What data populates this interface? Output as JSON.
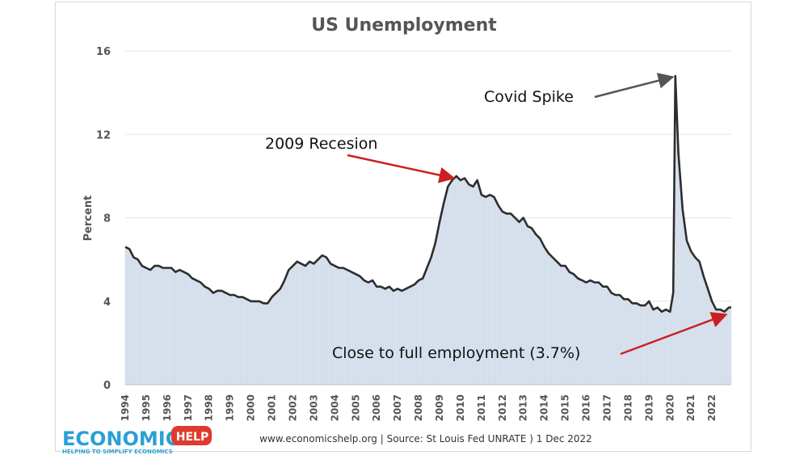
{
  "chart_data": {
    "type": "area",
    "title": "US Unemployment",
    "ylabel": "Percent",
    "xlabel": "",
    "ylim": [
      0,
      16
    ],
    "yticks": [
      0,
      4,
      8,
      12,
      16
    ],
    "xlim": [
      1994.0,
      2022.92
    ],
    "xticks": [
      "1994",
      "1995",
      "1996",
      "1997",
      "1998",
      "1999",
      "2000",
      "2001",
      "2002",
      "2003",
      "2004",
      "2005",
      "2006",
      "2007",
      "2008",
      "2009",
      "2010",
      "2011",
      "2012",
      "2013",
      "2014",
      "2015",
      "2016",
      "2017",
      "2018",
      "2019",
      "2020",
      "2021",
      "2022"
    ],
    "grid": "horizontal",
    "series": [
      {
        "values": [
          [
            1994.0,
            6.6
          ],
          [
            1994.2,
            6.5
          ],
          [
            1994.4,
            6.1
          ],
          [
            1994.6,
            6.0
          ],
          [
            1994.8,
            5.7
          ],
          [
            1995.0,
            5.6
          ],
          [
            1995.2,
            5.5
          ],
          [
            1995.4,
            5.7
          ],
          [
            1995.6,
            5.7
          ],
          [
            1995.8,
            5.6
          ],
          [
            1996.0,
            5.6
          ],
          [
            1996.2,
            5.6
          ],
          [
            1996.4,
            5.4
          ],
          [
            1996.6,
            5.5
          ],
          [
            1996.8,
            5.4
          ],
          [
            1997.0,
            5.3
          ],
          [
            1997.2,
            5.1
          ],
          [
            1997.4,
            5.0
          ],
          [
            1997.6,
            4.9
          ],
          [
            1997.8,
            4.7
          ],
          [
            1998.0,
            4.6
          ],
          [
            1998.2,
            4.4
          ],
          [
            1998.4,
            4.5
          ],
          [
            1998.6,
            4.5
          ],
          [
            1998.8,
            4.4
          ],
          [
            1999.0,
            4.3
          ],
          [
            1999.2,
            4.3
          ],
          [
            1999.4,
            4.2
          ],
          [
            1999.6,
            4.2
          ],
          [
            1999.8,
            4.1
          ],
          [
            2000.0,
            4.0
          ],
          [
            2000.2,
            4.0
          ],
          [
            2000.4,
            4.0
          ],
          [
            2000.6,
            3.9
          ],
          [
            2000.8,
            3.9
          ],
          [
            2001.0,
            4.2
          ],
          [
            2001.2,
            4.4
          ],
          [
            2001.4,
            4.6
          ],
          [
            2001.6,
            5.0
          ],
          [
            2001.8,
            5.5
          ],
          [
            2002.0,
            5.7
          ],
          [
            2002.2,
            5.9
          ],
          [
            2002.4,
            5.8
          ],
          [
            2002.6,
            5.7
          ],
          [
            2002.8,
            5.9
          ],
          [
            2003.0,
            5.8
          ],
          [
            2003.2,
            6.0
          ],
          [
            2003.4,
            6.2
          ],
          [
            2003.6,
            6.1
          ],
          [
            2003.8,
            5.8
          ],
          [
            2004.0,
            5.7
          ],
          [
            2004.2,
            5.6
          ],
          [
            2004.4,
            5.6
          ],
          [
            2004.6,
            5.5
          ],
          [
            2004.8,
            5.4
          ],
          [
            2005.0,
            5.3
          ],
          [
            2005.2,
            5.2
          ],
          [
            2005.4,
            5.0
          ],
          [
            2005.6,
            4.9
          ],
          [
            2005.8,
            5.0
          ],
          [
            2006.0,
            4.7
          ],
          [
            2006.2,
            4.7
          ],
          [
            2006.4,
            4.6
          ],
          [
            2006.6,
            4.7
          ],
          [
            2006.8,
            4.5
          ],
          [
            2007.0,
            4.6
          ],
          [
            2007.2,
            4.5
          ],
          [
            2007.4,
            4.6
          ],
          [
            2007.6,
            4.7
          ],
          [
            2007.8,
            4.8
          ],
          [
            2008.0,
            5.0
          ],
          [
            2008.2,
            5.1
          ],
          [
            2008.4,
            5.6
          ],
          [
            2008.6,
            6.1
          ],
          [
            2008.8,
            6.8
          ],
          [
            2009.0,
            7.8
          ],
          [
            2009.2,
            8.7
          ],
          [
            2009.4,
            9.5
          ],
          [
            2009.6,
            9.8
          ],
          [
            2009.8,
            10.0
          ],
          [
            2010.0,
            9.8
          ],
          [
            2010.2,
            9.9
          ],
          [
            2010.4,
            9.6
          ],
          [
            2010.6,
            9.5
          ],
          [
            2010.8,
            9.8
          ],
          [
            2011.0,
            9.1
          ],
          [
            2011.2,
            9.0
          ],
          [
            2011.4,
            9.1
          ],
          [
            2011.6,
            9.0
          ],
          [
            2011.8,
            8.6
          ],
          [
            2012.0,
            8.3
          ],
          [
            2012.2,
            8.2
          ],
          [
            2012.4,
            8.2
          ],
          [
            2012.6,
            8.0
          ],
          [
            2012.8,
            7.8
          ],
          [
            2013.0,
            8.0
          ],
          [
            2013.2,
            7.6
          ],
          [
            2013.4,
            7.5
          ],
          [
            2013.6,
            7.2
          ],
          [
            2013.8,
            7.0
          ],
          [
            2014.0,
            6.6
          ],
          [
            2014.2,
            6.3
          ],
          [
            2014.4,
            6.1
          ],
          [
            2014.6,
            5.9
          ],
          [
            2014.8,
            5.7
          ],
          [
            2015.0,
            5.7
          ],
          [
            2015.2,
            5.4
          ],
          [
            2015.4,
            5.3
          ],
          [
            2015.6,
            5.1
          ],
          [
            2015.8,
            5.0
          ],
          [
            2016.0,
            4.9
          ],
          [
            2016.2,
            5.0
          ],
          [
            2016.4,
            4.9
          ],
          [
            2016.6,
            4.9
          ],
          [
            2016.8,
            4.7
          ],
          [
            2017.0,
            4.7
          ],
          [
            2017.2,
            4.4
          ],
          [
            2017.4,
            4.3
          ],
          [
            2017.6,
            4.3
          ],
          [
            2017.8,
            4.1
          ],
          [
            2018.0,
            4.1
          ],
          [
            2018.2,
            3.9
          ],
          [
            2018.4,
            3.9
          ],
          [
            2018.6,
            3.8
          ],
          [
            2018.8,
            3.8
          ],
          [
            2019.0,
            4.0
          ],
          [
            2019.2,
            3.6
          ],
          [
            2019.4,
            3.7
          ],
          [
            2019.6,
            3.5
          ],
          [
            2019.8,
            3.6
          ],
          [
            2020.0,
            3.5
          ],
          [
            2020.15,
            4.4
          ],
          [
            2020.25,
            14.8
          ],
          [
            2020.4,
            11.1
          ],
          [
            2020.6,
            8.4
          ],
          [
            2020.8,
            6.9
          ],
          [
            2021.0,
            6.4
          ],
          [
            2021.2,
            6.1
          ],
          [
            2021.4,
            5.9
          ],
          [
            2021.6,
            5.2
          ],
          [
            2021.8,
            4.6
          ],
          [
            2022.0,
            4.0
          ],
          [
            2022.2,
            3.6
          ],
          [
            2022.4,
            3.6
          ],
          [
            2022.6,
            3.5
          ],
          [
            2022.8,
            3.7
          ],
          [
            2022.92,
            3.7
          ]
        ]
      }
    ],
    "annotations": [
      {
        "text": "2009 Recesion",
        "target": [
          2009.8,
          10.0
        ],
        "arrow_color": "#cc1f1f"
      },
      {
        "text": "Covid Spike",
        "target": [
          2020.25,
          14.8
        ],
        "arrow_color": "#555555"
      },
      {
        "text": "Close to full employment (3.7%)",
        "target": [
          2022.8,
          3.4
        ],
        "arrow_color": "#cc1f1f"
      }
    ],
    "line_color": "#2d2d2d",
    "fill_color": "#dbe4ef"
  },
  "logo": {
    "main": "ECONOMICS",
    "badge": "HELP",
    "tagline": "HELPING TO SIMPLIFY ECONOMICS"
  },
  "source_text": "www.economicshelp.org  |  Source: St Louis Fed UNRATE )  1 Dec 2022"
}
